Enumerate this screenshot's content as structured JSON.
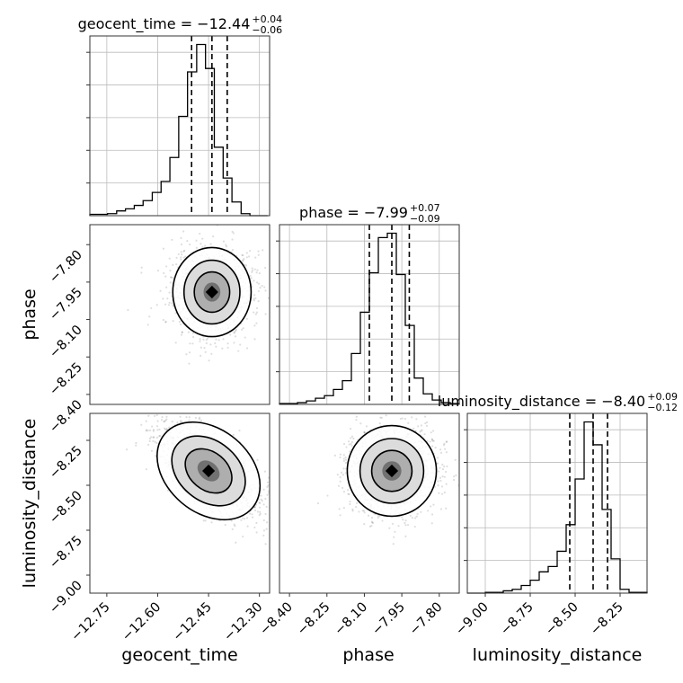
{
  "chart_data": {
    "type": "corner",
    "parameters": [
      {
        "name": "geocent_time",
        "median": "−12.44",
        "plus": "+0.04",
        "minus": "−0.06",
        "title_prefix": "geocent_time = ",
        "range": [
          -12.8,
          -12.27
        ],
        "ticks": [
          "−12.75",
          "−12.60",
          "−12.45",
          "−12.30"
        ],
        "tick_values": [
          -12.75,
          -12.6,
          -12.45,
          -12.3
        ],
        "quantiles": [
          -12.5,
          -12.44,
          -12.395
        ],
        "hist": {
          "edges": [
            -12.8,
            -12.774,
            -12.748,
            -12.721,
            -12.695,
            -12.669,
            -12.643,
            -12.616,
            -12.59,
            -12.564,
            -12.538,
            -12.512,
            -12.485,
            -12.459,
            -12.433,
            -12.407,
            -12.381,
            -12.354,
            -12.328,
            -12.302,
            -12.276
          ],
          "counts": [
            2,
            2,
            3,
            7,
            10,
            15,
            22,
            34,
            50,
            85,
            145,
            210,
            250,
            215,
            100,
            55,
            20,
            3,
            0,
            0
          ]
        }
      },
      {
        "name": "phase",
        "median": "−7.99",
        "plus": "+0.07",
        "minus": "−0.09",
        "title_prefix": "phase = ",
        "range": [
          -8.44,
          -7.72
        ],
        "ticks": [
          "−8.40",
          "−8.25",
          "−8.10",
          "−7.95",
          "−7.80"
        ],
        "tick_values": [
          -8.4,
          -8.25,
          -8.1,
          -7.95,
          -7.8
        ],
        "quantiles": [
          -8.08,
          -7.99,
          -7.92
        ],
        "hist": {
          "edges": [
            -8.44,
            -8.404,
            -8.368,
            -8.332,
            -8.296,
            -8.26,
            -8.224,
            -8.188,
            -8.152,
            -8.116,
            -8.08,
            -8.044,
            -8.008,
            -7.972,
            -7.936,
            -7.9,
            -7.864,
            -7.828,
            -7.792,
            -7.756,
            -7.72
          ],
          "counts": [
            1,
            1,
            2,
            4,
            7,
            10,
            17,
            27,
            58,
            105,
            150,
            190,
            195,
            148,
            90,
            30,
            12,
            5,
            2,
            1
          ]
        }
      },
      {
        "name": "luminosity_distance",
        "median": "−8.40",
        "plus": "+0.09",
        "minus": "−0.12",
        "title_prefix": "luminosity_distance = ",
        "range": [
          -9.1,
          -8.1
        ],
        "ticks": [
          "−9.00",
          "−8.75",
          "−8.50",
          "−8.25"
        ],
        "tick_values": [
          -9.0,
          -8.75,
          -8.5,
          -8.25
        ],
        "quantiles": [
          -8.53,
          -8.4,
          -8.32
        ],
        "hist": {
          "edges": [
            -9.1,
            -9.05,
            -9.0,
            -8.95,
            -8.9,
            -8.85,
            -8.8,
            -8.75,
            -8.7,
            -8.65,
            -8.6,
            -8.55,
            -8.5,
            -8.45,
            -8.4,
            -8.35,
            -8.3,
            -8.25,
            -8.2,
            -8.15,
            -8.1
          ],
          "counts": [
            0,
            0,
            1,
            1,
            3,
            5,
            10,
            17,
            28,
            35,
            55,
            90,
            150,
            225,
            195,
            110,
            45,
            5,
            1,
            1
          ]
        }
      }
    ],
    "pairs": [
      {
        "x": "geocent_time",
        "y": "phase",
        "y_ticks": [
          "−7.80",
          "−7.95",
          "−8.10",
          "−8.25",
          "−8.40"
        ],
        "y_tick_values": [
          -7.8,
          -7.95,
          -8.1,
          -8.25,
          -8.4
        ],
        "mean": [
          -12.44,
          -7.99
        ],
        "sd": [
          0.055,
          0.085
        ],
        "corr": 0.0
      },
      {
        "x": "geocent_time",
        "y": "luminosity_distance",
        "y_ticks": [
          "−8.25",
          "−8.50",
          "−8.75",
          "−9.00"
        ],
        "y_tick_values": [
          -8.25,
          -8.5,
          -8.75,
          -9.0
        ],
        "mean": [
          -12.45,
          -8.42
        ],
        "sd": [
          0.07,
          0.13
        ],
        "corr": -0.65
      },
      {
        "x": "phase",
        "y": "luminosity_distance",
        "mean": [
          -7.99,
          -8.42
        ],
        "sd": [
          0.085,
          0.12
        ],
        "corr": 0.0
      }
    ],
    "xlabels": [
      "geocent_time",
      "phase",
      "luminosity_distance"
    ],
    "ylabels": [
      "phase",
      "luminosity_distance"
    ]
  }
}
